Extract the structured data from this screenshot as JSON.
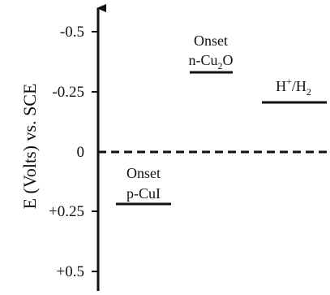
{
  "diagram": {
    "axis": {
      "title": "E (Volts) vs. SCE",
      "ticks": [
        {
          "value": -0.5,
          "label": "-0.5"
        },
        {
          "value": -0.25,
          "label": "-0.25"
        },
        {
          "value": 0,
          "label": "0"
        },
        {
          "value": 0.25,
          "label": "+0.25"
        },
        {
          "value": 0.5,
          "label": "+0.5"
        }
      ]
    },
    "levels": [
      {
        "id": "n-cu2o",
        "line1": "Onset",
        "line2_main": "n-Cu",
        "line2_sub": "2",
        "line2_end": "O",
        "potential": -0.34
      },
      {
        "id": "h-h2",
        "line1": "",
        "line2_main": "H",
        "line2_sup": "+",
        "line2_mid": "/H",
        "line2_sub": "2",
        "potential": -0.24
      },
      {
        "id": "p-cui",
        "line1": "Onset",
        "line2_main": "p-CuI",
        "potential": 0.2
      }
    ],
    "zero_line": {
      "style": "dashed",
      "color": "#111111"
    },
    "colors": {
      "ink": "#111111",
      "background": "#ffffff"
    }
  }
}
